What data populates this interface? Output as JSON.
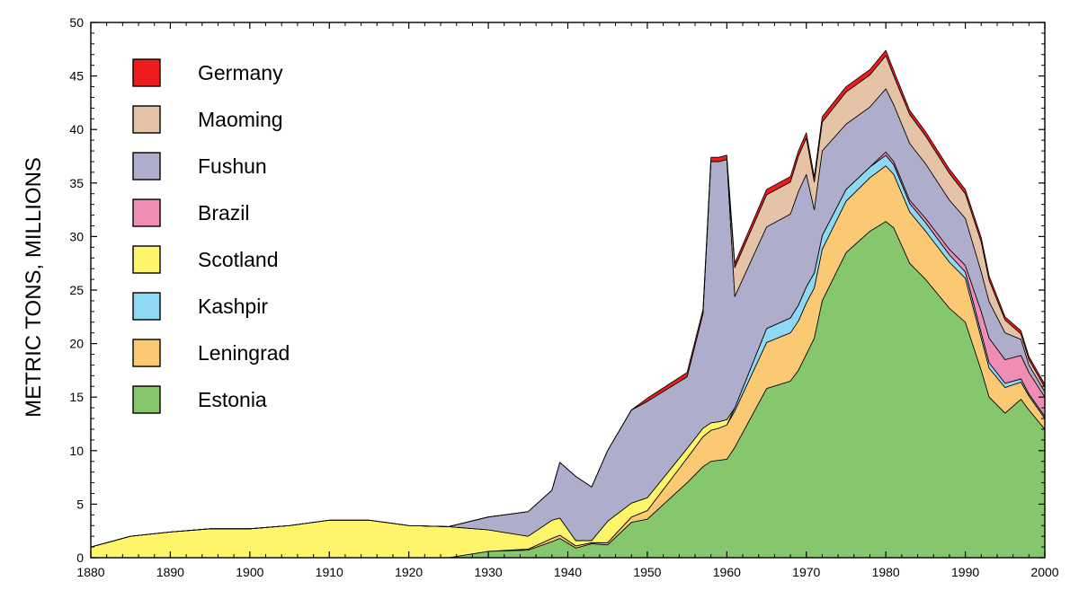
{
  "chart_data": {
    "type": "area",
    "stacked": true,
    "title": "",
    "xlabel": "",
    "ylabel": "METRIC TONS, MILLIONS",
    "xlim": [
      1880,
      2000
    ],
    "ylim": [
      0,
      50
    ],
    "x_ticks": [
      1880,
      1890,
      1900,
      1910,
      1920,
      1930,
      1940,
      1950,
      1960,
      1970,
      1980,
      1990,
      2000
    ],
    "y_ticks": [
      0,
      5,
      10,
      15,
      20,
      25,
      30,
      35,
      40,
      45,
      50
    ],
    "legend_position": "top-left",
    "legend_order": [
      "Germany",
      "Maoming",
      "Fushun",
      "Brazil",
      "Scotland",
      "Kashpir",
      "Leningrad",
      "Estonia"
    ],
    "x": [
      1880,
      1885,
      1890,
      1895,
      1900,
      1905,
      1910,
      1915,
      1920,
      1925,
      1930,
      1935,
      1938,
      1939,
      1941,
      1943,
      1945,
      1948,
      1950,
      1955,
      1957,
      1958,
      1959,
      1960,
      1961,
      1965,
      1968,
      1969,
      1970,
      1971,
      1972,
      1975,
      1978,
      1980,
      1981,
      1983,
      1985,
      1988,
      1990,
      1992,
      1993,
      1995,
      1997,
      1998,
      2000
    ],
    "series": [
      {
        "name": "Estonia",
        "color": "#86c76e",
        "values": [
          0,
          0,
          0,
          0,
          0,
          0,
          0,
          0,
          0,
          0,
          0.6,
          0.7,
          1.5,
          1.8,
          0.9,
          1.3,
          1.2,
          3.3,
          3.6,
          7.0,
          8.5,
          9.0,
          9.1,
          9.2,
          10.3,
          15.8,
          16.5,
          17.5,
          19.0,
          20.5,
          24.0,
          28.5,
          30.5,
          31.4,
          30.8,
          27.5,
          26.0,
          23.3,
          22.0,
          17.5,
          15.0,
          13.5,
          14.8,
          13.8,
          12.0
        ]
      },
      {
        "name": "Leningrad",
        "color": "#fbc874",
        "values": [
          0,
          0,
          0,
          0,
          0,
          0,
          0,
          0,
          0,
          0,
          0,
          0.1,
          0.3,
          0.3,
          0.2,
          0.1,
          0.2,
          0.5,
          0.8,
          2.3,
          2.8,
          2.9,
          3.0,
          3.2,
          3.4,
          4.3,
          4.5,
          4.6,
          4.8,
          4.7,
          4.8,
          4.8,
          5.0,
          5.2,
          5.0,
          4.8,
          4.5,
          4.3,
          4.1,
          3.0,
          2.7,
          2.4,
          1.6,
          1.3,
          1.0
        ]
      },
      {
        "name": "Kashpir",
        "color": "#8fd8f4",
        "values": [
          0,
          0,
          0,
          0,
          0,
          0,
          0,
          0,
          0,
          0,
          0,
          0,
          0,
          0,
          0,
          0,
          0,
          0,
          0,
          0,
          0,
          0,
          0,
          0,
          0.3,
          1.3,
          1.4,
          1.5,
          1.5,
          1.4,
          1.3,
          1.1,
          1.0,
          1.0,
          0.9,
          0.8,
          0.8,
          0.7,
          0.6,
          0.5,
          0.5,
          0.4,
          0.3,
          0.2,
          0.2
        ]
      },
      {
        "name": "Scotland",
        "color": "#fff56b",
        "values": [
          1.0,
          2.0,
          2.4,
          2.7,
          2.7,
          3.0,
          3.5,
          3.5,
          3.0,
          2.9,
          2.0,
          1.2,
          1.7,
          1.6,
          0.5,
          0.2,
          2.0,
          1.3,
          1.2,
          0.9,
          0.8,
          0.7,
          0.6,
          0.5,
          0,
          0,
          0,
          0,
          0,
          0,
          0,
          0,
          0,
          0,
          0,
          0,
          0,
          0,
          0,
          0,
          0,
          0,
          0,
          0,
          0
        ]
      },
      {
        "name": "Brazil",
        "color": "#ef8db5",
        "values": [
          0,
          0,
          0,
          0,
          0,
          0,
          0,
          0,
          0,
          0,
          0,
          0,
          0,
          0,
          0,
          0,
          0,
          0,
          0,
          0,
          0,
          0,
          0,
          0,
          0,
          0,
          0,
          0,
          0,
          0,
          0,
          0,
          0,
          0.3,
          0.3,
          0.3,
          0.4,
          0.5,
          0.6,
          2.0,
          2.3,
          2.2,
          2.2,
          2.0,
          1.8
        ]
      },
      {
        "name": "Fushun",
        "color": "#aeadcb",
        "values": [
          0,
          0,
          0,
          0,
          0,
          0,
          0,
          0,
          0,
          0,
          1.2,
          2.3,
          2.8,
          5.2,
          6.0,
          5.0,
          6.6,
          8.7,
          9.0,
          6.7,
          10.7,
          24.4,
          24.3,
          24.3,
          10.4,
          9.5,
          9.7,
          10.6,
          10.5,
          5.9,
          7.9,
          6.1,
          5.6,
          5.9,
          5.3,
          5.3,
          5.1,
          4.6,
          4.4,
          3.7,
          3.4,
          2.5,
          1.5,
          0.7,
          0.5
        ]
      },
      {
        "name": "Maoming",
        "color": "#e5c3a7",
        "values": [
          0,
          0,
          0,
          0,
          0,
          0,
          0,
          0,
          0,
          0,
          0,
          0,
          0,
          0,
          0,
          0,
          0,
          0,
          0,
          0,
          0,
          0,
          0,
          0,
          2.7,
          3.0,
          3.0,
          3.3,
          3.4,
          2.6,
          2.7,
          3.0,
          3.0,
          3.1,
          2.7,
          2.7,
          2.6,
          2.5,
          2.3,
          2.8,
          2.0,
          1.2,
          0.5,
          0.5,
          0.4
        ]
      },
      {
        "name": "Germany",
        "color": "#ee1c1c",
        "values": [
          0,
          0,
          0,
          0,
          0,
          0,
          0,
          0,
          0,
          0,
          0,
          0,
          0,
          0,
          0,
          0,
          0,
          0,
          0.3,
          0.4,
          0.4,
          0.4,
          0.4,
          0.4,
          0.4,
          0.5,
          0.5,
          0.5,
          0.5,
          0.5,
          0.5,
          0.5,
          0.5,
          0.5,
          0.5,
          0.4,
          0.4,
          0.4,
          0.4,
          0.4,
          0.4,
          0.3,
          0.3,
          0.3,
          0.3
        ]
      }
    ]
  }
}
